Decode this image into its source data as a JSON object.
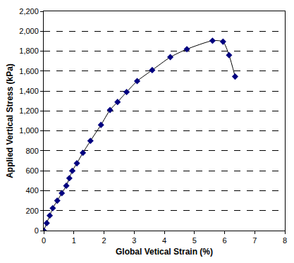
{
  "chart_data": {
    "type": "line",
    "x_label": "Global Vetical Strain (%)",
    "y_label": "Applied Vertical Stress (kPa)",
    "series": [
      {
        "name": "Applied Vertical Stress",
        "color": "#000080",
        "marker": "diamond",
        "line_style": "solid",
        "x": [
          0,
          0.1,
          0.2,
          0.3,
          0.45,
          0.6,
          0.75,
          0.85,
          0.95,
          1.1,
          1.3,
          1.55,
          1.9,
          2.2,
          2.45,
          2.75,
          3.1,
          3.6,
          4.2,
          4.75,
          5.6,
          5.95,
          6.15,
          6.35
        ],
        "values": [
          0,
          75,
          150,
          225,
          300,
          375,
          450,
          525,
          600,
          675,
          780,
          900,
          1060,
          1210,
          1290,
          1390,
          1500,
          1610,
          1740,
          1820,
          1905,
          1895,
          1760,
          1545
        ]
      }
    ],
    "xlim": [
      0,
      8
    ],
    "xticks": [
      0,
      1,
      2,
      3,
      4,
      5,
      6,
      7,
      8
    ],
    "ylim": [
      0,
      2200
    ],
    "yticks": [
      0,
      200,
      400,
      600,
      800,
      {
        "value": 1000,
        "label": "1,000"
      },
      {
        "value": 1200,
        "label": "1,200"
      },
      {
        "value": 1400,
        "label": "1,400"
      },
      {
        "value": 1600,
        "label": "1,600"
      },
      {
        "value": 1800,
        "label": "1,800"
      },
      {
        "value": 2000,
        "label": "2,000"
      },
      {
        "value": 2200,
        "label": "2,200"
      }
    ],
    "grid": true
  }
}
